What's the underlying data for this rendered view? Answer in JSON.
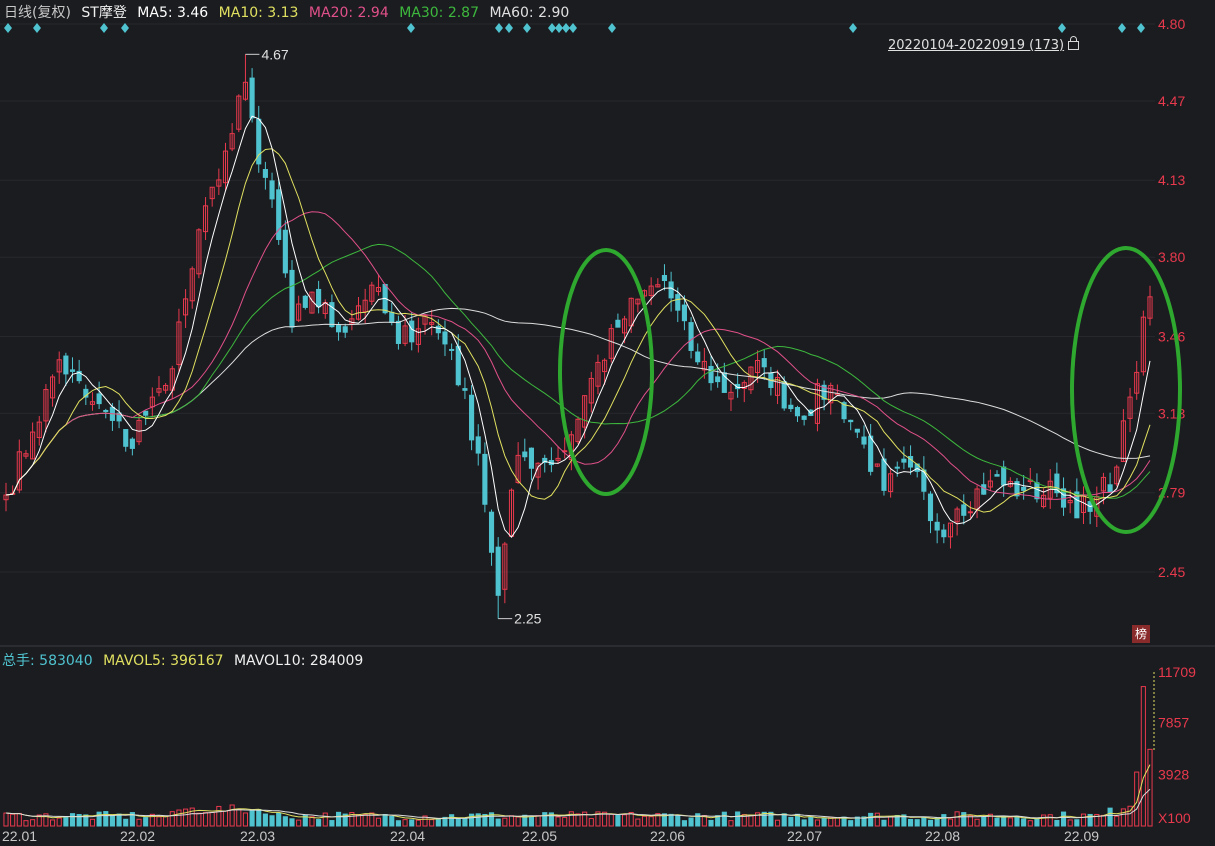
{
  "header": {
    "period": "日线(复权)",
    "stock": "ST摩登",
    "ma5": "MA5: 3.46",
    "ma10": "MA10: 3.13",
    "ma20": "MA20: 2.94",
    "ma30": "MA30: 2.87",
    "ma60": "MA60: 2.90"
  },
  "range_label": "20220104-20220919 (173)",
  "volume_header": {
    "total": "总手: 583040",
    "mavol5": "MAVOL5: 396167",
    "mavol10": "MAVOL10: 284009"
  },
  "badge": "榜",
  "colors": {
    "background": "#1b1c20",
    "up": "#e8394d",
    "down": "#4fc3cf",
    "ma5": "#ffffff",
    "ma10": "#e0e060",
    "ma20": "#e0508a",
    "ma30": "#3db83d",
    "ma60": "#dddddd",
    "annotation": "#2ea82e"
  },
  "chart_data": [
    {
      "type": "candlestick",
      "title": "ST摩登",
      "y_ticks": [
        "4.80",
        "4.47",
        "4.13",
        "3.80",
        "3.46",
        "3.13",
        "2.79",
        "2.45"
      ],
      "ylim": [
        2.17,
        4.87
      ],
      "x_ticks": [
        "22.01",
        "22.02",
        "22.03",
        "22.04",
        "22.05",
        "22.06",
        "22.07",
        "22.08",
        "22.09"
      ],
      "annotations": [
        "4.67",
        "2.25"
      ],
      "high": 4.67,
      "low": 2.25,
      "anchors": [
        [
          "2022-01-04",
          2.78
        ],
        [
          "2022-01-10",
          3.05
        ],
        [
          "2022-01-14",
          3.36
        ],
        [
          "2022-01-20",
          3.2
        ],
        [
          "2022-01-26",
          3.1
        ],
        [
          "2022-01-29",
          2.98
        ],
        [
          "2022-02-08",
          3.1
        ],
        [
          "2022-02-14",
          3.25
        ],
        [
          "2022-02-18",
          3.75
        ],
        [
          "2022-02-23",
          4.1
        ],
        [
          "2022-02-28",
          4.33
        ],
        [
          "2022-03-02",
          4.55
        ],
        [
          "2022-03-04",
          4.2
        ],
        [
          "2022-03-08",
          4.05
        ],
        [
          "2022-03-11",
          3.5
        ],
        [
          "2022-03-16",
          3.65
        ],
        [
          "2022-03-22",
          3.48
        ],
        [
          "2022-03-29",
          3.68
        ],
        [
          "2022-04-06",
          3.43
        ],
        [
          "2022-04-12",
          3.55
        ],
        [
          "2022-04-18",
          3.4
        ],
        [
          "2022-04-22",
          2.96
        ],
        [
          "2022-04-27",
          2.35
        ],
        [
          "2022-05-05",
          2.95
        ],
        [
          "2022-05-11",
          2.92
        ],
        [
          "2022-05-16",
          2.97
        ],
        [
          "2022-05-20",
          3.28
        ],
        [
          "2022-05-26",
          3.5
        ],
        [
          "2022-05-31",
          3.62
        ],
        [
          "2022-06-07",
          3.7
        ],
        [
          "2022-06-13",
          3.4
        ],
        [
          "2022-06-20",
          3.22
        ],
        [
          "2022-06-28",
          3.33
        ],
        [
          "2022-07-05",
          3.12
        ],
        [
          "2022-07-12",
          3.25
        ],
        [
          "2022-07-18",
          3.05
        ],
        [
          "2022-07-22",
          2.8
        ],
        [
          "2022-07-28",
          2.9
        ],
        [
          "2022-08-03",
          2.63
        ],
        [
          "2022-08-08",
          2.72
        ],
        [
          "2022-08-15",
          2.84
        ],
        [
          "2022-08-22",
          2.8
        ],
        [
          "2022-08-29",
          2.79
        ],
        [
          "2022-09-05",
          2.71
        ],
        [
          "2022-09-09",
          2.9
        ],
        [
          "2022-09-14",
          3.2
        ],
        [
          "2022-09-19",
          3.63
        ]
      ],
      "ma_last": {
        "MA5": 3.46,
        "MA10": 3.13,
        "MA20": 2.94,
        "MA30": 2.87,
        "MA60": 2.9
      }
    },
    {
      "type": "bar",
      "title": "volume",
      "y_ticks": [
        "11709",
        "7857",
        "3928",
        "X100"
      ],
      "ylim": [
        0,
        11709
      ],
      "last_values": [
        10600,
        4100,
        5830
      ],
      "total": 583040,
      "mavol5": 396167,
      "mavol10": 284009
    }
  ]
}
